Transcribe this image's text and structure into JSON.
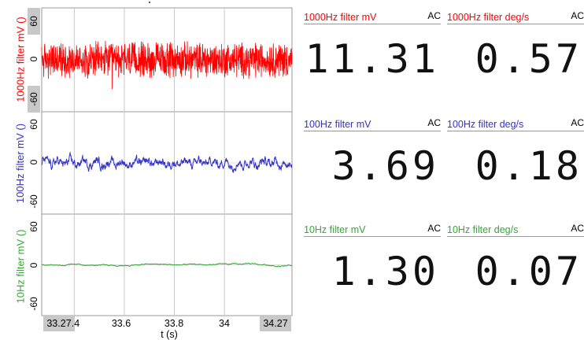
{
  "plot": {
    "x_axis": {
      "label": "t (s)",
      "range_start_box": "33.27",
      "range_end_box": "34.27",
      "ticks": [
        ".4",
        "33.6",
        "33.8",
        "34"
      ],
      "tick_values": [
        33.4,
        33.6,
        33.8,
        34.0
      ],
      "range": [
        33.27,
        34.27
      ]
    },
    "channels": [
      {
        "id": "ch1000",
        "label": "1000Hz filter mV ()",
        "color": "#ff0000",
        "ticks": [
          "60",
          "0",
          "-60"
        ],
        "amplitude": 22,
        "smooth": 1
      },
      {
        "id": "ch100",
        "label": "100Hz filter mV ()",
        "color": "#3333cc",
        "ticks": [
          "60",
          "0",
          "-60"
        ],
        "amplitude": 5,
        "smooth": 6
      },
      {
        "id": "ch10",
        "label": "10Hz filter mV ()",
        "color": "#33aa33",
        "ticks": [
          "60",
          "0",
          "-60"
        ],
        "amplitude": 1.2,
        "smooth": 40
      }
    ],
    "y_range": [
      -80,
      80
    ]
  },
  "meters": [
    {
      "title": "1000Hz filter mV",
      "mode": "AC",
      "value": "11.31",
      "color": "#ff0000"
    },
    {
      "title": "1000Hz filter deg/s",
      "mode": "AC",
      "value": "0.57",
      "color": "#ff0000"
    },
    {
      "title": "100Hz filter mV",
      "mode": "AC",
      "value": "3.69",
      "color": "#3333cc"
    },
    {
      "title": "100Hz filter deg/s",
      "mode": "AC",
      "value": "0.18",
      "color": "#3333cc"
    },
    {
      "title": "10Hz filter mV",
      "mode": "AC",
      "value": "1.30",
      "color": "#33aa33"
    },
    {
      "title": "10Hz filter deg/s",
      "mode": "AC",
      "value": "0.07",
      "color": "#33aa33"
    }
  ]
}
